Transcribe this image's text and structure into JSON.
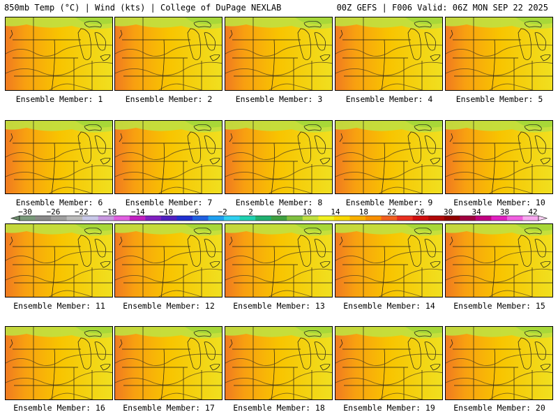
{
  "header": {
    "left": "850mb Temp (°C) | Wind (kts) | College of DuPage NEXLAB",
    "right": "00Z GEFS | F006 Valid: 06Z MON SEP 22 2025"
  },
  "members": [
    "Ensemble Member: 1",
    "Ensemble Member: 2",
    "Ensemble Member: 3",
    "Ensemble Member: 4",
    "Ensemble Member: 5",
    "Ensemble Member: 6",
    "Ensemble Member: 7",
    "Ensemble Member: 8",
    "Ensemble Member: 9",
    "Ensemble Member: 10",
    "Ensemble Member: 11",
    "Ensemble Member: 12",
    "Ensemble Member: 13",
    "Ensemble Member: 14",
    "Ensemble Member: 15",
    "Ensemble Member: 16",
    "Ensemble Member: 17",
    "Ensemble Member: 18",
    "Ensemble Member: 19",
    "Ensemble Member: 20"
  ],
  "colorbar": {
    "ticks": [
      "−30",
      "−26",
      "−22",
      "−18",
      "−14",
      "−10",
      "−6",
      "−2",
      "2",
      "6",
      "10",
      "14",
      "18",
      "22",
      "26",
      "30",
      "34",
      "38",
      "42"
    ],
    "colors": [
      "#7a9a7a",
      "#8a8a8a",
      "#a0a0a0",
      "#bcbcbc",
      "#c8c8e8",
      "#c898e0",
      "#e060e0",
      "#c020c0",
      "#8020c0",
      "#5020c0",
      "#2030d0",
      "#2060e0",
      "#20a0f0",
      "#30d0f0",
      "#20d0b0",
      "#20b070",
      "#40a040",
      "#80c040",
      "#c0e040",
      "#f0f020",
      "#f8d800",
      "#f8b000",
      "#f89000",
      "#f06020",
      "#e83020",
      "#d01010",
      "#b00808",
      "#900000",
      "#a00040",
      "#c00080",
      "#e020c0",
      "#f060e0",
      "#f8a8f0"
    ]
  }
}
